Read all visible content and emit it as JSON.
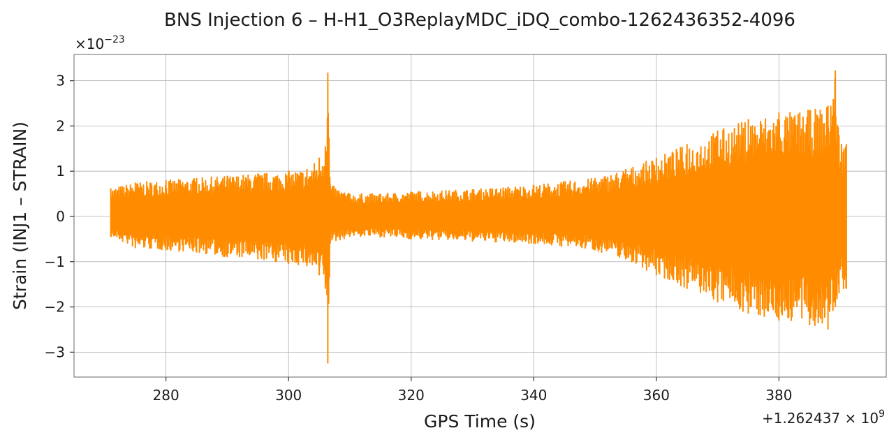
{
  "chart_data": {
    "type": "line",
    "title": "BNS Injection 6 – H-H1_O3ReplayMDC_iDQ_combo-1262436352-4096",
    "xlabel": "GPS Time (s)",
    "ylabel": "Strain (INJ1 – STRAIN)",
    "x_offset_label": "+1.262437 × 10",
    "x_offset_exponent": "9",
    "y_multiplier_label": "×10",
    "y_multiplier_exponent": "−23",
    "xlim": [
      265,
      397.5
    ],
    "ylim": [
      -3.55,
      3.58
    ],
    "x_ticks": [
      280,
      300,
      320,
      340,
      360,
      380
    ],
    "x_tick_labels": [
      "280",
      "300",
      "320",
      "340",
      "360",
      "380"
    ],
    "y_ticks": [
      -3,
      -2,
      -1,
      0,
      1,
      2,
      3
    ],
    "y_tick_labels": [
      "−3",
      "−2",
      "−1",
      "0",
      "1",
      "2",
      "3"
    ],
    "grid": true,
    "series": [
      {
        "color": "#ff8c00",
        "x_start": 271,
        "x_end": 391,
        "envelope": [
          {
            "x": 271,
            "lower": -0.45,
            "upper": 0.62
          },
          {
            "x": 275,
            "lower": -0.7,
            "upper": 0.75
          },
          {
            "x": 280,
            "lower": -0.75,
            "upper": 0.8
          },
          {
            "x": 285,
            "lower": -0.8,
            "upper": 0.85
          },
          {
            "x": 290,
            "lower": -0.9,
            "upper": 0.9
          },
          {
            "x": 295,
            "lower": -0.95,
            "upper": 0.95
          },
          {
            "x": 300,
            "lower": -1.05,
            "upper": 1.0
          },
          {
            "x": 303,
            "lower": -1.1,
            "upper": 1.05
          },
          {
            "x": 305,
            "lower": -1.3,
            "upper": 1.3
          },
          {
            "x": 306,
            "lower": -1.6,
            "upper": 1.55
          },
          {
            "x": 306.4,
            "lower": -3.25,
            "upper": 3.18
          },
          {
            "x": 306.8,
            "lower": -0.6,
            "upper": 0.7
          },
          {
            "x": 310,
            "lower": -0.45,
            "upper": 0.5
          },
          {
            "x": 315,
            "lower": -0.45,
            "upper": 0.5
          },
          {
            "x": 320,
            "lower": -0.5,
            "upper": 0.55
          },
          {
            "x": 330,
            "lower": -0.55,
            "upper": 0.6
          },
          {
            "x": 340,
            "lower": -0.6,
            "upper": 0.7
          },
          {
            "x": 350,
            "lower": -0.75,
            "upper": 0.85
          },
          {
            "x": 355,
            "lower": -0.95,
            "upper": 1.05
          },
          {
            "x": 360,
            "lower": -1.3,
            "upper": 1.3
          },
          {
            "x": 365,
            "lower": -1.6,
            "upper": 1.6
          },
          {
            "x": 370,
            "lower": -1.9,
            "upper": 1.9
          },
          {
            "x": 375,
            "lower": -2.15,
            "upper": 2.15
          },
          {
            "x": 380,
            "lower": -2.3,
            "upper": 2.3
          },
          {
            "x": 385,
            "lower": -2.4,
            "upper": 2.35
          },
          {
            "x": 388,
            "lower": -2.5,
            "upper": 2.45
          },
          {
            "x": 389.2,
            "lower": -2.0,
            "upper": 3.23
          },
          {
            "x": 389.8,
            "lower": -1.7,
            "upper": 1.8
          },
          {
            "x": 391,
            "lower": -1.6,
            "upper": 1.6
          }
        ]
      }
    ]
  }
}
